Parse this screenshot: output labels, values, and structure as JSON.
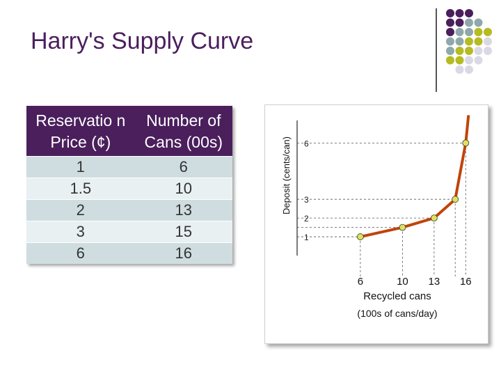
{
  "slide": {
    "title": "Harry's Supply Curve"
  },
  "table": {
    "headers": [
      "Reservatio n Price (¢)",
      "Number of Cans (00s)"
    ],
    "rows": [
      [
        "1",
        "6"
      ],
      [
        "1.5",
        "10"
      ],
      [
        "2",
        "13"
      ],
      [
        "3",
        "15"
      ],
      [
        "6",
        "16"
      ]
    ]
  },
  "colors": {
    "title": "#4a1f5c",
    "curve": "#c0440a",
    "point": "#dde25c",
    "dot_purple": "#4a1f5c",
    "dot_gray": "#8fa8ab",
    "dot_olive": "#b5bb22",
    "dot_light": "#d9d9e6"
  },
  "chart_data": {
    "type": "line",
    "x": [
      6,
      10,
      13,
      15,
      16
    ],
    "y": [
      1,
      1.5,
      2,
      3,
      6
    ],
    "xticks": [
      "6",
      "10",
      "13",
      "16"
    ],
    "yticks": [
      "1",
      "2",
      "3",
      "6"
    ],
    "xlabel_line1": "Recycled cans",
    "xlabel_line2": "(100s of cans/day)",
    "ylabel": "Deposit (cents/can)",
    "xlim": [
      0,
      17.3
    ],
    "ylim": [
      0,
      7.5
    ],
    "reference_lines": "dashed"
  }
}
